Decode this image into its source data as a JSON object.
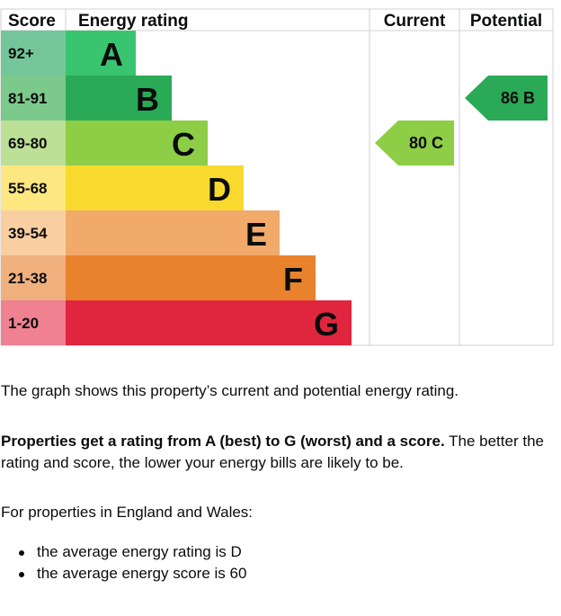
{
  "chart_data": {
    "type": "bar",
    "headers": {
      "score": "Score",
      "rating": "Energy rating",
      "current": "Current",
      "potential": "Potential"
    },
    "bands": [
      {
        "letter": "A",
        "range": "92+",
        "color": "#008054",
        "range_bg": "#74c69a",
        "bar": "#39c56f"
      },
      {
        "letter": "B",
        "range": "81-91",
        "color": "#19b459",
        "range_bg": "#7bc98b",
        "bar": "#2aa957"
      },
      {
        "letter": "C",
        "range": "69-80",
        "color": "#8dce46",
        "range_bg": "#bce096",
        "bar": "#8dce46"
      },
      {
        "letter": "D",
        "range": "55-68",
        "color": "#ffd500",
        "range_bg": "#fde780",
        "bar": "#f8d92e"
      },
      {
        "letter": "E",
        "range": "39-54",
        "color": "#fcaa65",
        "range_bg": "#f9cfa2",
        "bar": "#f2aa6b"
      },
      {
        "letter": "F",
        "range": "21-38",
        "color": "#ef8023",
        "range_bg": "#f0b07e",
        "bar": "#e8822d"
      },
      {
        "letter": "G",
        "range": "1-20",
        "color": "#e9153b",
        "range_bg": "#ef8191",
        "bar": "#e0263e"
      }
    ],
    "current": {
      "score": 80,
      "letter": "C",
      "label": "80  C",
      "band_index": 2,
      "color": "#8dce46"
    },
    "potential": {
      "score": 86,
      "letter": "B",
      "label": "86  B",
      "band_index": 1,
      "color": "#2aa957"
    }
  },
  "text": {
    "p1": "The graph shows this property’s current and potential energy rating.",
    "p2_bold": "Properties get a rating from A (best) to G (worst) and a score.",
    "p2_rest": " The better the rating and score, the lower your energy bills are likely to be.",
    "p3": "For properties in England and Wales:",
    "bullets": [
      "the average energy rating is D",
      "the average energy score is 60"
    ]
  }
}
